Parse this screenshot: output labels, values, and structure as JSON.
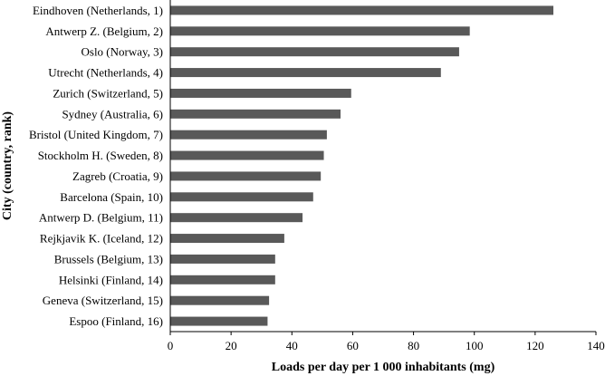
{
  "chart_data": {
    "type": "bar",
    "orientation": "horizontal",
    "categories": [
      "Eindhoven (Netherlands, 1)",
      "Antwerp Z. (Belgium, 2)",
      "Oslo (Norway, 3)",
      "Utrecht (Netherlands, 4)",
      "Zurich (Switzerland, 5)",
      "Sydney (Australia, 6)",
      "Bristol (United Kingdom, 7)",
      "Stockholm H. (Sweden, 8)",
      "Zagreb (Croatia, 9)",
      "Barcelona (Spain, 10)",
      "Antwerp D. (Belgium, 11)",
      "Rejkjavik K. (Iceland, 12)",
      "Brussels (Belgium, 13)",
      "Helsinki (Finland, 14)",
      "Geneva (Switzerland, 15)",
      "Espoo (Finland, 16)"
    ],
    "values": [
      126,
      98.5,
      95,
      89,
      59.5,
      56,
      51.5,
      50.5,
      49.5,
      47,
      43.5,
      37.5,
      34.5,
      34.5,
      32.5,
      32
    ],
    "xlabel": "Loads per day per 1 000 inhabitants (mg)",
    "ylabel": "City (country, rank)",
    "xlim": [
      0,
      140
    ],
    "xticks": [
      0,
      20,
      40,
      60,
      80,
      100,
      120,
      140
    ],
    "grid": false,
    "bar_color": "#595959"
  }
}
